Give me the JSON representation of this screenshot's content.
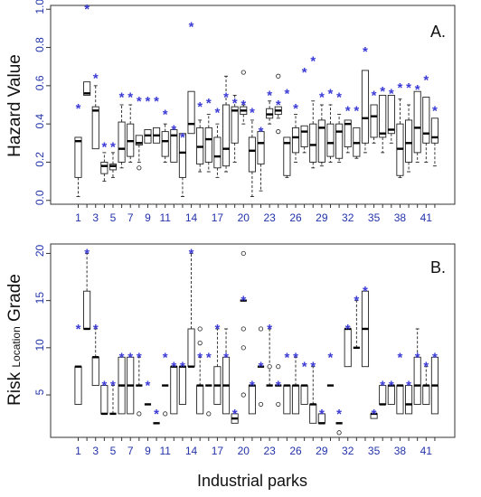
{
  "chart_data": [
    {
      "type": "box",
      "panel_label": "A.",
      "ylabel": "Hazard Value",
      "ylim": [
        -0.02,
        1.02
      ],
      "yticks": [
        0.0,
        0.2,
        0.4,
        0.6,
        0.8,
        1.0
      ],
      "ytick_labels": [
        "0.0",
        "0.2",
        "0.4",
        "0.6",
        "0.8",
        "1.0"
      ],
      "x_tick_labels": [
        "1",
        "3",
        "5",
        "7",
        "9",
        "11",
        "14",
        "17",
        "20",
        "23",
        "26",
        "29",
        "32",
        "35",
        "38",
        "41"
      ],
      "x_tick_positions": [
        1,
        3,
        5,
        7,
        9,
        11,
        14,
        17,
        20,
        23,
        26,
        29,
        32,
        35,
        38,
        41
      ],
      "boxes": [
        {
          "x": 1,
          "min": 0.02,
          "q1": 0.12,
          "median": 0.31,
          "q3": 0.33,
          "max": 0.33,
          "outliers": [],
          "star": 0.48
        },
        {
          "x": 2,
          "min": 0.55,
          "q1": 0.55,
          "median": 0.56,
          "q3": 0.62,
          "max": 0.62,
          "outliers": [],
          "star": 1.0
        },
        {
          "x": 3,
          "min": 0.27,
          "q1": 0.27,
          "median": 0.47,
          "q3": 0.49,
          "max": 0.6,
          "outliers": [],
          "star": 0.64
        },
        {
          "x": 4,
          "min": 0.1,
          "q1": 0.14,
          "median": 0.18,
          "q3": 0.2,
          "max": 0.25,
          "outliers": [],
          "star": 0.28
        },
        {
          "x": 5,
          "min": 0.12,
          "q1": 0.16,
          "median": 0.18,
          "q3": 0.19,
          "max": 0.25,
          "outliers": [],
          "star": 0.28
        },
        {
          "x": 6,
          "min": 0.17,
          "q1": 0.2,
          "median": 0.27,
          "q3": 0.41,
          "max": 0.5,
          "outliers": [],
          "star": 0.54
        },
        {
          "x": 7,
          "min": 0.2,
          "q1": 0.23,
          "median": 0.31,
          "q3": 0.4,
          "max": 0.5,
          "outliers": [],
          "star": 0.54
        },
        {
          "x": 8,
          "min": 0.2,
          "q1": 0.29,
          "median": 0.3,
          "q3": 0.34,
          "max": 0.34,
          "outliers": [
            0.17
          ],
          "star": 0.52
        },
        {
          "x": 9,
          "min": 0.3,
          "q1": 0.3,
          "median": 0.34,
          "q3": 0.37,
          "max": 0.37,
          "outliers": [],
          "star": 0.52
        },
        {
          "x": 10,
          "min": 0.3,
          "q1": 0.3,
          "median": 0.34,
          "q3": 0.38,
          "max": 0.38,
          "outliers": [],
          "star": 0.52
        },
        {
          "x": 11,
          "min": 0.2,
          "q1": 0.23,
          "median": 0.31,
          "q3": 0.36,
          "max": 0.4,
          "outliers": [],
          "star": 0.45
        },
        {
          "x": 12,
          "min": 0.2,
          "q1": 0.2,
          "median": 0.34,
          "q3": 0.37,
          "max": 0.37,
          "outliers": [],
          "star": 0.37
        },
        {
          "x": 13,
          "min": 0.02,
          "q1": 0.12,
          "median": 0.25,
          "q3": 0.35,
          "max": 0.35,
          "outliers": [],
          "star": 0.33
        },
        {
          "x": 14,
          "min": 0.35,
          "q1": 0.35,
          "median": 0.4,
          "q3": 0.57,
          "max": 0.57,
          "outliers": [],
          "star": 0.91
        },
        {
          "x": 15,
          "min": 0.15,
          "q1": 0.19,
          "median": 0.28,
          "q3": 0.38,
          "max": 0.42,
          "outliers": [],
          "star": 0.49
        },
        {
          "x": 16,
          "min": 0.15,
          "q1": 0.2,
          "median": 0.32,
          "q3": 0.38,
          "max": 0.45,
          "outliers": [],
          "star": 0.51
        },
        {
          "x": 17,
          "min": 0.12,
          "q1": 0.17,
          "median": 0.23,
          "q3": 0.33,
          "max": 0.4,
          "outliers": [],
          "star": 0.46
        },
        {
          "x": 18,
          "min": 0.15,
          "q1": 0.18,
          "median": 0.27,
          "q3": 0.5,
          "max": 0.65,
          "outliers": [],
          "star": 0.54
        },
        {
          "x": 19,
          "min": 0.2,
          "q1": 0.3,
          "median": 0.47,
          "q3": 0.49,
          "max": 0.55,
          "outliers": [],
          "star": 0.51
        },
        {
          "x": 20,
          "min": 0.4,
          "q1": 0.45,
          "median": 0.47,
          "q3": 0.49,
          "max": 0.5,
          "outliers": [
            0.67
          ],
          "star": 0.5
        },
        {
          "x": 21,
          "min": 0.02,
          "q1": 0.15,
          "median": 0.26,
          "q3": 0.33,
          "max": 0.42,
          "outliers": [],
          "star": 0.46
        },
        {
          "x": 22,
          "min": 0.05,
          "q1": 0.19,
          "median": 0.3,
          "q3": 0.36,
          "max": 0.36,
          "outliers": [],
          "star": 0.36
        },
        {
          "x": 23,
          "min": 0.4,
          "q1": 0.43,
          "median": 0.45,
          "q3": 0.48,
          "max": 0.52,
          "outliers": [],
          "star": 0.55
        },
        {
          "x": 24,
          "min": 0.43,
          "q1": 0.45,
          "median": 0.47,
          "q3": 0.49,
          "max": 0.49,
          "outliers": [
            0.65,
            0.36
          ],
          "star": 0.5
        },
        {
          "x": 25,
          "min": 0.12,
          "q1": 0.13,
          "median": 0.3,
          "q3": 0.33,
          "max": 0.33,
          "outliers": [],
          "star": 0.56
        },
        {
          "x": 26,
          "min": 0.2,
          "q1": 0.25,
          "median": 0.33,
          "q3": 0.38,
          "max": 0.45,
          "outliers": [],
          "star": 0.48
        },
        {
          "x": 27,
          "min": 0.25,
          "q1": 0.28,
          "median": 0.36,
          "q3": 0.39,
          "max": 0.39,
          "outliers": [],
          "star": 0.67
        },
        {
          "x": 28,
          "min": 0.17,
          "q1": 0.2,
          "median": 0.29,
          "q3": 0.4,
          "max": 0.52,
          "outliers": [],
          "star": 0.73
        },
        {
          "x": 29,
          "min": 0.18,
          "q1": 0.2,
          "median": 0.38,
          "q3": 0.42,
          "max": 0.5,
          "outliers": [],
          "star": 0.54
        },
        {
          "x": 30,
          "min": 0.2,
          "q1": 0.23,
          "median": 0.3,
          "q3": 0.4,
          "max": 0.5,
          "outliers": [],
          "star": 0.56
        },
        {
          "x": 31,
          "min": 0.2,
          "q1": 0.22,
          "median": 0.36,
          "q3": 0.4,
          "max": 0.45,
          "outliers": [],
          "star": 0.54
        },
        {
          "x": 32,
          "min": 0.25,
          "q1": 0.28,
          "median": 0.4,
          "q3": 0.42,
          "max": 0.42,
          "outliers": [],
          "star": 0.47
        },
        {
          "x": 33,
          "min": 0.22,
          "q1": 0.23,
          "median": 0.3,
          "q3": 0.38,
          "max": 0.38,
          "outliers": [],
          "star": 0.47
        },
        {
          "x": 34,
          "min": 0.25,
          "q1": 0.3,
          "median": 0.43,
          "q3": 0.68,
          "max": 0.68,
          "outliers": [],
          "star": 0.78
        },
        {
          "x": 35,
          "min": 0.3,
          "q1": 0.33,
          "median": 0.44,
          "q3": 0.5,
          "max": 0.5,
          "outliers": [],
          "star": 0.55
        },
        {
          "x": 36,
          "min": 0.25,
          "q1": 0.33,
          "median": 0.35,
          "q3": 0.55,
          "max": 0.55,
          "outliers": [],
          "star": 0.57
        },
        {
          "x": 37,
          "min": 0.3,
          "q1": 0.35,
          "median": 0.37,
          "q3": 0.55,
          "max": 0.55,
          "outliers": [],
          "star": 0.56
        },
        {
          "x": 38,
          "min": 0.12,
          "q1": 0.13,
          "median": 0.27,
          "q3": 0.4,
          "max": 0.53,
          "outliers": [],
          "star": 0.59
        },
        {
          "x": 39,
          "min": 0.15,
          "q1": 0.2,
          "median": 0.3,
          "q3": 0.42,
          "max": 0.5,
          "outliers": [],
          "star": 0.59
        },
        {
          "x": 40,
          "min": 0.2,
          "q1": 0.25,
          "median": 0.38,
          "q3": 0.57,
          "max": 0.57,
          "outliers": [],
          "star": 0.58
        },
        {
          "x": 41,
          "min": 0.2,
          "q1": 0.3,
          "median": 0.35,
          "q3": 0.54,
          "max": 0.54,
          "outliers": [],
          "star": 0.63
        },
        {
          "x": 42,
          "min": 0.18,
          "q1": 0.3,
          "median": 0.33,
          "q3": 0.43,
          "max": 0.43,
          "outliers": [],
          "star": 0.47
        }
      ]
    },
    {
      "type": "box",
      "panel_label": "B.",
      "ylabel_parts": [
        "Risk ",
        "Location",
        " Grade"
      ],
      "ylim": [
        0.5,
        21
      ],
      "yticks": [
        5,
        10,
        15,
        20
      ],
      "ytick_labels": [
        "5",
        "10",
        "15",
        "20"
      ],
      "xlabel": "Industrial parks",
      "x_tick_labels": [
        "1",
        "3",
        "5",
        "7",
        "9",
        "11",
        "14",
        "17",
        "20",
        "23",
        "26",
        "29",
        "32",
        "35",
        "38",
        "41"
      ],
      "x_tick_positions": [
        1,
        3,
        5,
        7,
        9,
        11,
        14,
        17,
        20,
        23,
        26,
        29,
        32,
        35,
        38,
        41
      ],
      "boxes": [
        {
          "x": 1,
          "min": 4,
          "q1": 4,
          "median": 8,
          "q3": 8,
          "max": 8,
          "outliers": [],
          "star": 12
        },
        {
          "x": 2,
          "min": 12,
          "q1": 12,
          "median": 12,
          "q3": 16,
          "max": 20,
          "outliers": [],
          "star": 20
        },
        {
          "x": 3,
          "min": 6,
          "q1": 6,
          "median": 9,
          "q3": 9,
          "max": 12,
          "outliers": [],
          "star": 12
        },
        {
          "x": 4,
          "min": 3,
          "q1": 3,
          "median": 3,
          "q3": 6,
          "max": 6,
          "outliers": [],
          "star": 6
        },
        {
          "x": 5,
          "min": 3,
          "q1": 3,
          "median": 3,
          "q3": 3,
          "max": 6,
          "outliers": [],
          "star": 6
        },
        {
          "x": 6,
          "min": 3,
          "q1": 3,
          "median": 6,
          "q3": 9,
          "max": 9,
          "outliers": [],
          "star": 9
        },
        {
          "x": 7,
          "min": 3,
          "q1": 3,
          "median": 6,
          "q3": 9,
          "max": 9,
          "outliers": [],
          "star": 9
        },
        {
          "x": 8,
          "min": 6,
          "q1": 6,
          "median": 6,
          "q3": 6,
          "max": 9,
          "outliers": [
            3
          ],
          "star": 9
        },
        {
          "x": 9,
          "min": 4,
          "q1": 4,
          "median": 4,
          "q3": 4,
          "max": 4,
          "outliers": [],
          "star": 6
        },
        {
          "x": 10,
          "min": 2,
          "q1": 2,
          "median": 2,
          "q3": 2,
          "max": 2,
          "outliers": [],
          "star": 3
        },
        {
          "x": 11,
          "min": 6,
          "q1": 6,
          "median": 6,
          "q3": 6,
          "max": 6,
          "outliers": [
            3
          ],
          "star": 9
        },
        {
          "x": 12,
          "min": 3,
          "q1": 3,
          "median": 8,
          "q3": 8,
          "max": 8,
          "outliers": [],
          "star": 8
        },
        {
          "x": 13,
          "min": 4,
          "q1": 4,
          "median": 8,
          "q3": 8,
          "max": 8,
          "outliers": [],
          "star": 8
        },
        {
          "x": 14,
          "min": 8,
          "q1": 8,
          "median": 8,
          "q3": 12,
          "max": 20,
          "outliers": [],
          "star": 20
        },
        {
          "x": 15,
          "min": 3,
          "q1": 3,
          "median": 6,
          "q3": 6,
          "max": 9,
          "outliers": [
            12,
            10.5
          ],
          "star": 9
        },
        {
          "x": 16,
          "min": 6,
          "q1": 6,
          "median": 6,
          "q3": 6,
          "max": 6,
          "outliers": [
            3
          ],
          "star": 9
        },
        {
          "x": 17,
          "min": 4,
          "q1": 4,
          "median": 6,
          "q3": 8,
          "max": 12,
          "outliers": [],
          "star": 12
        },
        {
          "x": 18,
          "min": 3,
          "q1": 3,
          "median": 6,
          "q3": 9,
          "max": 12,
          "outliers": [],
          "star": 9
        },
        {
          "x": 19,
          "min": 2,
          "q1": 2,
          "median": 2.5,
          "q3": 3,
          "max": 3,
          "outliers": [],
          "star": 3
        },
        {
          "x": 20,
          "min": 15,
          "q1": 15,
          "median": 15,
          "q3": 15,
          "max": 15,
          "outliers": [
            20,
            12,
            10,
            5
          ],
          "star": 15
        },
        {
          "x": 21,
          "min": 3,
          "q1": 3,
          "median": 6,
          "q3": 6,
          "max": 6,
          "outliers": [],
          "star": 6
        },
        {
          "x": 22,
          "min": 8,
          "q1": 8,
          "median": 8,
          "q3": 8,
          "max": 8,
          "outliers": [
            12,
            4
          ],
          "star": 8
        },
        {
          "x": 23,
          "min": 6,
          "q1": 6,
          "median": 6,
          "q3": 6,
          "max": 12,
          "outliers": [
            8
          ],
          "star": 12
        },
        {
          "x": 24,
          "min": 6,
          "q1": 6,
          "median": 6,
          "q3": 6,
          "max": 6,
          "outliers": [
            8,
            4
          ],
          "star": 6
        },
        {
          "x": 25,
          "min": 3,
          "q1": 3,
          "median": 6,
          "q3": 6,
          "max": 6,
          "outliers": [],
          "star": 9
        },
        {
          "x": 26,
          "min": 3,
          "q1": 3,
          "median": 6,
          "q3": 6,
          "max": 9,
          "outliers": [],
          "star": 9
        },
        {
          "x": 27,
          "min": 4,
          "q1": 4,
          "median": 6,
          "q3": 6,
          "max": 6,
          "outliers": [],
          "star": 8
        },
        {
          "x": 28,
          "min": 2,
          "q1": 2,
          "median": 4,
          "q3": 4,
          "max": 8,
          "outliers": [],
          "star": 8
        },
        {
          "x": 29,
          "min": 2,
          "q1": 2,
          "median": 2,
          "q3": 3,
          "max": 3,
          "outliers": [],
          "star": 3
        },
        {
          "x": 30,
          "min": 6,
          "q1": 6,
          "median": 6,
          "q3": 6,
          "max": 6,
          "outliers": [],
          "star": 9
        },
        {
          "x": 31,
          "min": 2,
          "q1": 2,
          "median": 2,
          "q3": 2,
          "max": 2,
          "outliers": [
            1
          ],
          "star": 3
        },
        {
          "x": 32,
          "min": 8,
          "q1": 8,
          "median": 12,
          "q3": 12,
          "max": 12,
          "outliers": [],
          "star": 12
        },
        {
          "x": 33,
          "min": 10,
          "q1": 10,
          "median": 10,
          "q3": 10,
          "max": 15,
          "outliers": [],
          "star": 15
        },
        {
          "x": 34,
          "min": 8,
          "q1": 8,
          "median": 12,
          "q3": 16,
          "max": 16,
          "outliers": [],
          "star": 16
        },
        {
          "x": 35,
          "min": 2.5,
          "q1": 2.5,
          "median": 3,
          "q3": 3,
          "max": 3,
          "outliers": [],
          "star": 3
        },
        {
          "x": 36,
          "min": 4,
          "q1": 4,
          "median": 4,
          "q3": 6,
          "max": 6,
          "outliers": [],
          "star": 6
        },
        {
          "x": 37,
          "min": 4,
          "q1": 4,
          "median": 6,
          "q3": 6,
          "max": 6,
          "outliers": [],
          "star": 6
        },
        {
          "x": 38,
          "min": 3,
          "q1": 3,
          "median": 6,
          "q3": 6,
          "max": 6,
          "outliers": [],
          "star": 9
        },
        {
          "x": 39,
          "min": 3,
          "q1": 3,
          "median": 4,
          "q3": 6,
          "max": 6,
          "outliers": [],
          "star": 6
        },
        {
          "x": 40,
          "min": 4,
          "q1": 4,
          "median": 6,
          "q3": 9,
          "max": 12,
          "outliers": [],
          "star": 9
        },
        {
          "x": 41,
          "min": 4,
          "q1": 4,
          "median": 6,
          "q3": 6,
          "max": 8,
          "outliers": [],
          "star": 8
        },
        {
          "x": 42,
          "min": 3,
          "q1": 3,
          "median": 6,
          "q3": 9,
          "max": 9,
          "outliers": [],
          "star": 9
        }
      ]
    }
  ],
  "colors": {
    "star": "#3b3bd6",
    "box": "#222222",
    "tick_label": "#2233aa",
    "axis": "#333333"
  }
}
